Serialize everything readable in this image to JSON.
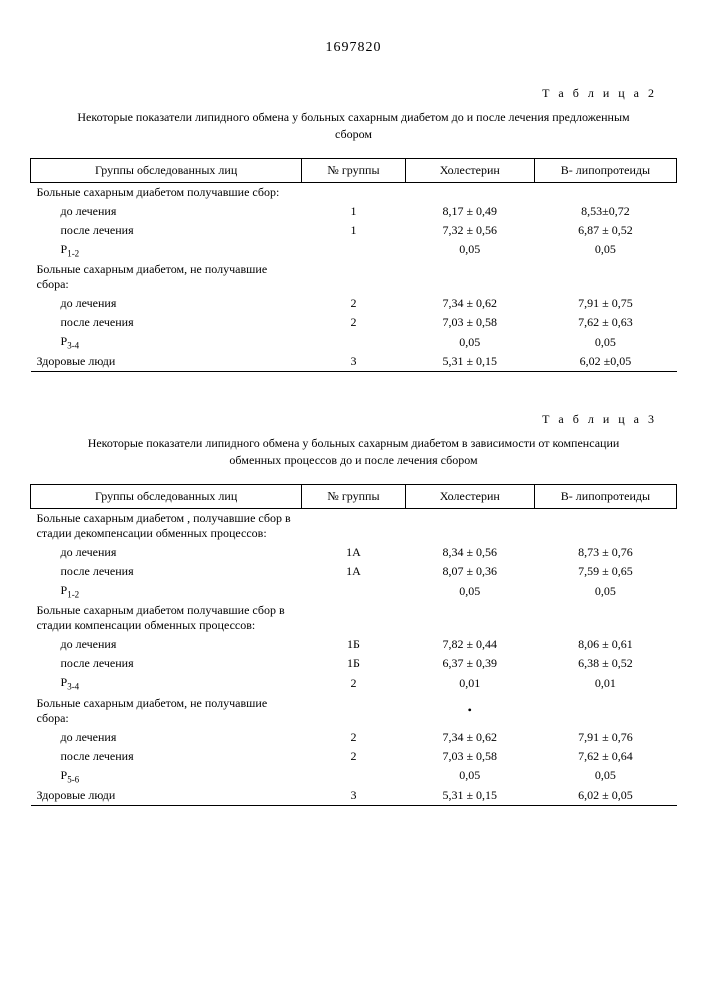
{
  "document_number": "1697820",
  "table2": {
    "label": "Т а б л и ц а 2",
    "caption": "Некоторые показатели липидного обмена у больных сахарным диабетом до и после лечения предложенным сбором",
    "headers": {
      "groups": "Группы обследованных лиц",
      "num": "№ группы",
      "chol": "Холестерин",
      "lipo": "В- липопротеиды"
    },
    "rows": [
      {
        "label": "Больные сахарным диабетом получавшие сбор:",
        "indent": false,
        "num": "",
        "chol": "",
        "lipo": ""
      },
      {
        "label": "до лечения",
        "indent": true,
        "num": "1",
        "chol": "8,17 ± 0,49",
        "lipo": "8,53±0,72"
      },
      {
        "label": "после лечения",
        "indent": true,
        "num": "1",
        "chol": "7,32 ± 0,56",
        "lipo": "6,87 ± 0,52"
      },
      {
        "label": "P1-2",
        "indent": true,
        "num": "",
        "chol": "0,05",
        "lipo": "0,05",
        "psub": "1-2"
      },
      {
        "label": "Больные сахарным диабетом, не получавшие сбора:",
        "indent": false,
        "num": "",
        "chol": "",
        "lipo": ""
      },
      {
        "label": "до лечения",
        "indent": true,
        "num": "2",
        "chol": "7,34 ± 0,62",
        "lipo": "7,91 ± 0,75"
      },
      {
        "label": "после лечения",
        "indent": true,
        "num": "2",
        "chol": "7,03 ± 0,58",
        "lipo": "7,62 ± 0,63"
      },
      {
        "label": "P3-4",
        "indent": true,
        "num": "",
        "chol": "0,05",
        "lipo": "0,05",
        "psub": "3-4"
      },
      {
        "label": "Здоровые люди",
        "indent": false,
        "num": "3",
        "chol": "5,31 ± 0,15",
        "lipo": "6,02 ±0,05"
      }
    ]
  },
  "table3": {
    "label": "Т а б л и ц а 3",
    "caption": "Некоторые показатели липидного обмена у больных сахарным диабетом в зависимости от компенсации обменных процессов до и после лечения сбором",
    "headers": {
      "groups": "Группы обследованных лиц",
      "num": "№ группы",
      "chol": "Холестерин",
      "lipo": "В- липопротеиды"
    },
    "rows": [
      {
        "label": "Больные сахарным диабетом , получавшие сбор в стадии декомпенсации обменных процессов:",
        "indent": false,
        "num": "",
        "chol": "",
        "lipo": ""
      },
      {
        "label": "до лечения",
        "indent": true,
        "num": "1А",
        "chol": "8,34 ± 0,56",
        "lipo": "8,73 ± 0,76"
      },
      {
        "label": "после лечения",
        "indent": true,
        "num": "1А",
        "chol": "8,07 ± 0,36",
        "lipo": "7,59 ± 0,65"
      },
      {
        "label": "P1-2",
        "indent": true,
        "num": "",
        "chol": "0,05",
        "lipo": "0,05",
        "psub": "1-2"
      },
      {
        "label": "Больные сахарным диабетом получавшие сбор в стадии компенсации обменных процессов:",
        "indent": false,
        "num": "",
        "chol": "",
        "lipo": ""
      },
      {
        "label": "до лечения",
        "indent": true,
        "num": "1Б",
        "chol": "7,82 ± 0,44",
        "lipo": "8,06 ± 0,61"
      },
      {
        "label": "после лечения",
        "indent": true,
        "num": "1Б",
        "chol": "6,37 ± 0,39",
        "lipo": "6,38 ± 0,52"
      },
      {
        "label": "P3-4",
        "indent": true,
        "num": "2",
        "chol": "0,01",
        "lipo": "0,01",
        "psub": "3-4"
      },
      {
        "label": "Больные сахарным диабетом, не получавшие сбора:",
        "indent": false,
        "num": "",
        "chol": "•",
        "lipo": ""
      },
      {
        "label": "до лечения",
        "indent": true,
        "num": "2",
        "chol": "7,34 ± 0,62",
        "lipo": "7,91 ± 0,76"
      },
      {
        "label": "после лечения",
        "indent": true,
        "num": "2",
        "chol": "7,03 ± 0,58",
        "lipo": "7,62 ± 0,64"
      },
      {
        "label": "P5-6",
        "indent": true,
        "num": "",
        "chol": "0,05",
        "lipo": "0,05",
        "psub": "5-6"
      },
      {
        "label": "Здоровые люди",
        "indent": false,
        "num": "3",
        "chol": "5,31 ± 0,15",
        "lipo": "6,02 ± 0,05"
      }
    ]
  }
}
